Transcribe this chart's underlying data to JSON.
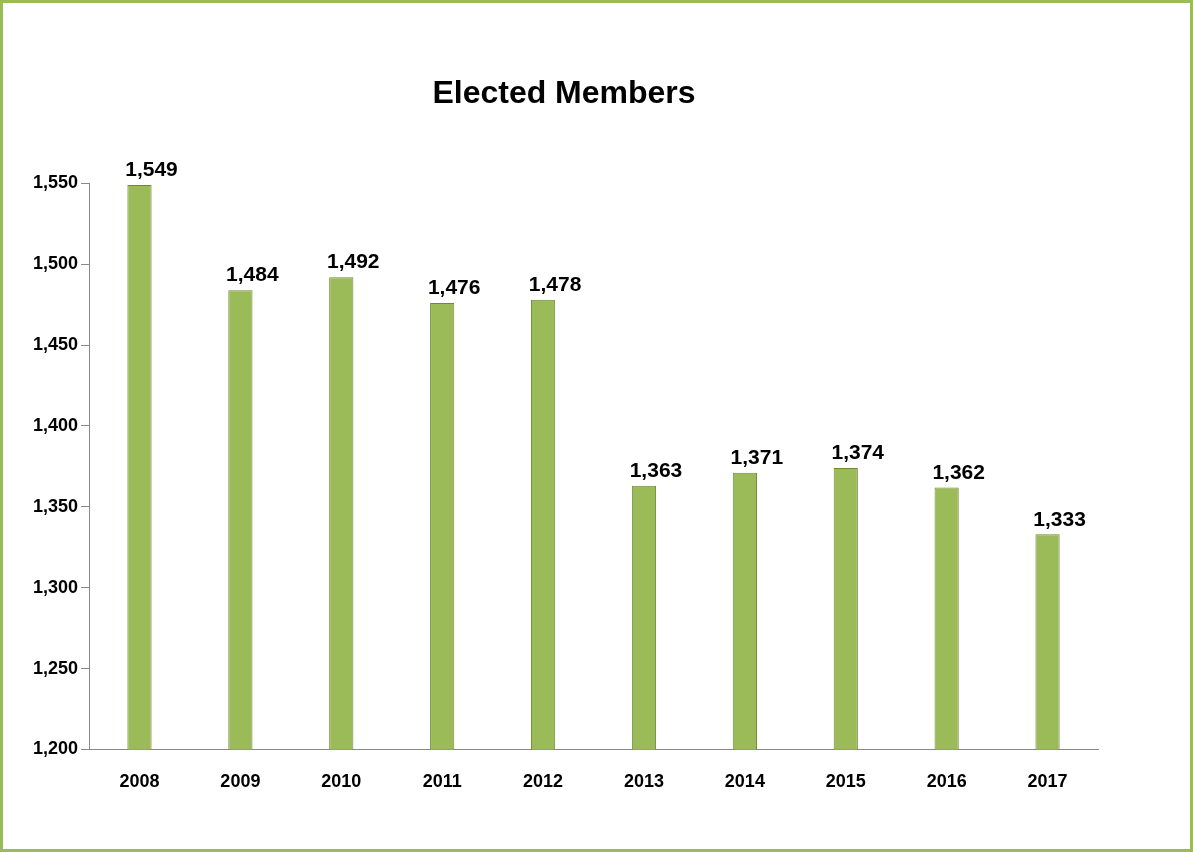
{
  "chart_data": {
    "type": "bar",
    "title": "Elected Members",
    "categories": [
      "2008",
      "2009",
      "2010",
      "2011",
      "2012",
      "2013",
      "2014",
      "2015",
      "2016",
      "2017"
    ],
    "values": [
      1549,
      1484,
      1492,
      1476,
      1478,
      1363,
      1371,
      1374,
      1362,
      1333
    ],
    "value_labels": [
      "1,549",
      "1,484",
      "1,492",
      "1,476",
      "1,478",
      "1,363",
      "1,371",
      "1,374",
      "1,362",
      "1,333"
    ],
    "color": "#9bbb59",
    "ylim": [
      1200,
      1550
    ],
    "yticks": [
      {
        "value": 1200,
        "label": "1,200"
      },
      {
        "value": 1250,
        "label": "1,250"
      },
      {
        "value": 1300,
        "label": "1,300"
      },
      {
        "value": 1350,
        "label": "1,350"
      },
      {
        "value": 1400,
        "label": "1,400"
      },
      {
        "value": 1450,
        "label": "1,450"
      },
      {
        "value": 1500,
        "label": "1,500"
      },
      {
        "value": 1550,
        "label": "1,550"
      }
    ],
    "grid": false,
    "legend": false
  }
}
